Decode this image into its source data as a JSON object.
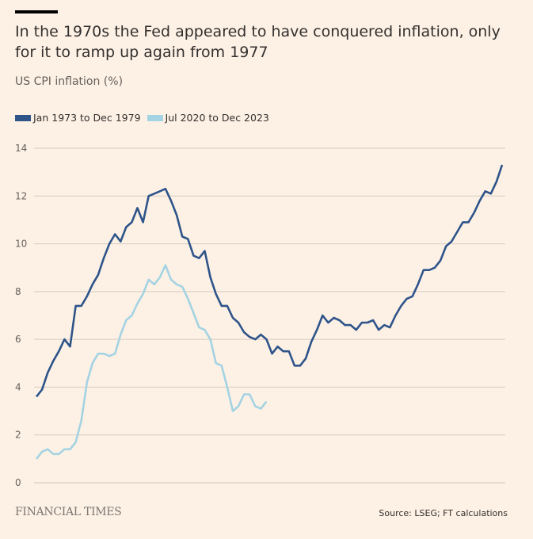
{
  "title": "In the 1970s the Fed appeared to have conquered inflation, only for it to ramp up again from 1977",
  "subtitle": "US CPI inflation (%)",
  "branding": "FINANCIAL TIMES",
  "source": "Source: LSEG; FT calculations",
  "chart_data": {
    "type": "line",
    "title": "In the 1970s the Fed appeared to have conquered inflation, only for it to ramp up again from 1977",
    "ylabel": "US CPI inflation (%)",
    "ylim": [
      0,
      14
    ],
    "yticks": [
      "0",
      "2",
      "4",
      "6",
      "8",
      "10",
      "12",
      "14"
    ],
    "grid": true,
    "legend_position": "top-left",
    "series": [
      {
        "name": "Jan 1973 to Dec 1979",
        "color": "#2e548a",
        "values": [
          3.6,
          3.9,
          4.6,
          5.1,
          5.5,
          6.0,
          5.7,
          7.4,
          7.4,
          7.8,
          8.3,
          8.7,
          9.4,
          10.0,
          10.4,
          10.1,
          10.7,
          10.9,
          11.5,
          10.9,
          12.0,
          12.1,
          12.2,
          12.3,
          11.8,
          11.2,
          10.3,
          10.2,
          9.5,
          9.4,
          9.7,
          8.6,
          7.9,
          7.4,
          7.4,
          6.9,
          6.7,
          6.3,
          6.1,
          6.0,
          6.2,
          6.0,
          5.4,
          5.7,
          5.5,
          5.5,
          4.9,
          4.9,
          5.2,
          5.9,
          6.4,
          7.0,
          6.7,
          6.9,
          6.8,
          6.6,
          6.6,
          6.4,
          6.7,
          6.7,
          6.8,
          6.4,
          6.6,
          6.5,
          7.0,
          7.4,
          7.7,
          7.8,
          8.3,
          8.9,
          8.9,
          9.0,
          9.3,
          9.9,
          10.1,
          10.5,
          10.9,
          10.9,
          11.3,
          11.8,
          12.2,
          12.1,
          12.6,
          13.3
        ]
      },
      {
        "name": "Jul 2020 to Dec 2023",
        "color": "#a4d3e3",
        "values": [
          1.0,
          1.3,
          1.4,
          1.2,
          1.2,
          1.4,
          1.4,
          1.7,
          2.6,
          4.2,
          5.0,
          5.4,
          5.4,
          5.3,
          5.4,
          6.2,
          6.8,
          7.0,
          7.5,
          7.9,
          8.5,
          8.3,
          8.6,
          9.1,
          8.5,
          8.3,
          8.2,
          7.7,
          7.1,
          6.5,
          6.4,
          6.0,
          5.0,
          4.9,
          4.0,
          3.0,
          3.2,
          3.7,
          3.7,
          3.2,
          3.1,
          3.4
        ]
      }
    ]
  }
}
